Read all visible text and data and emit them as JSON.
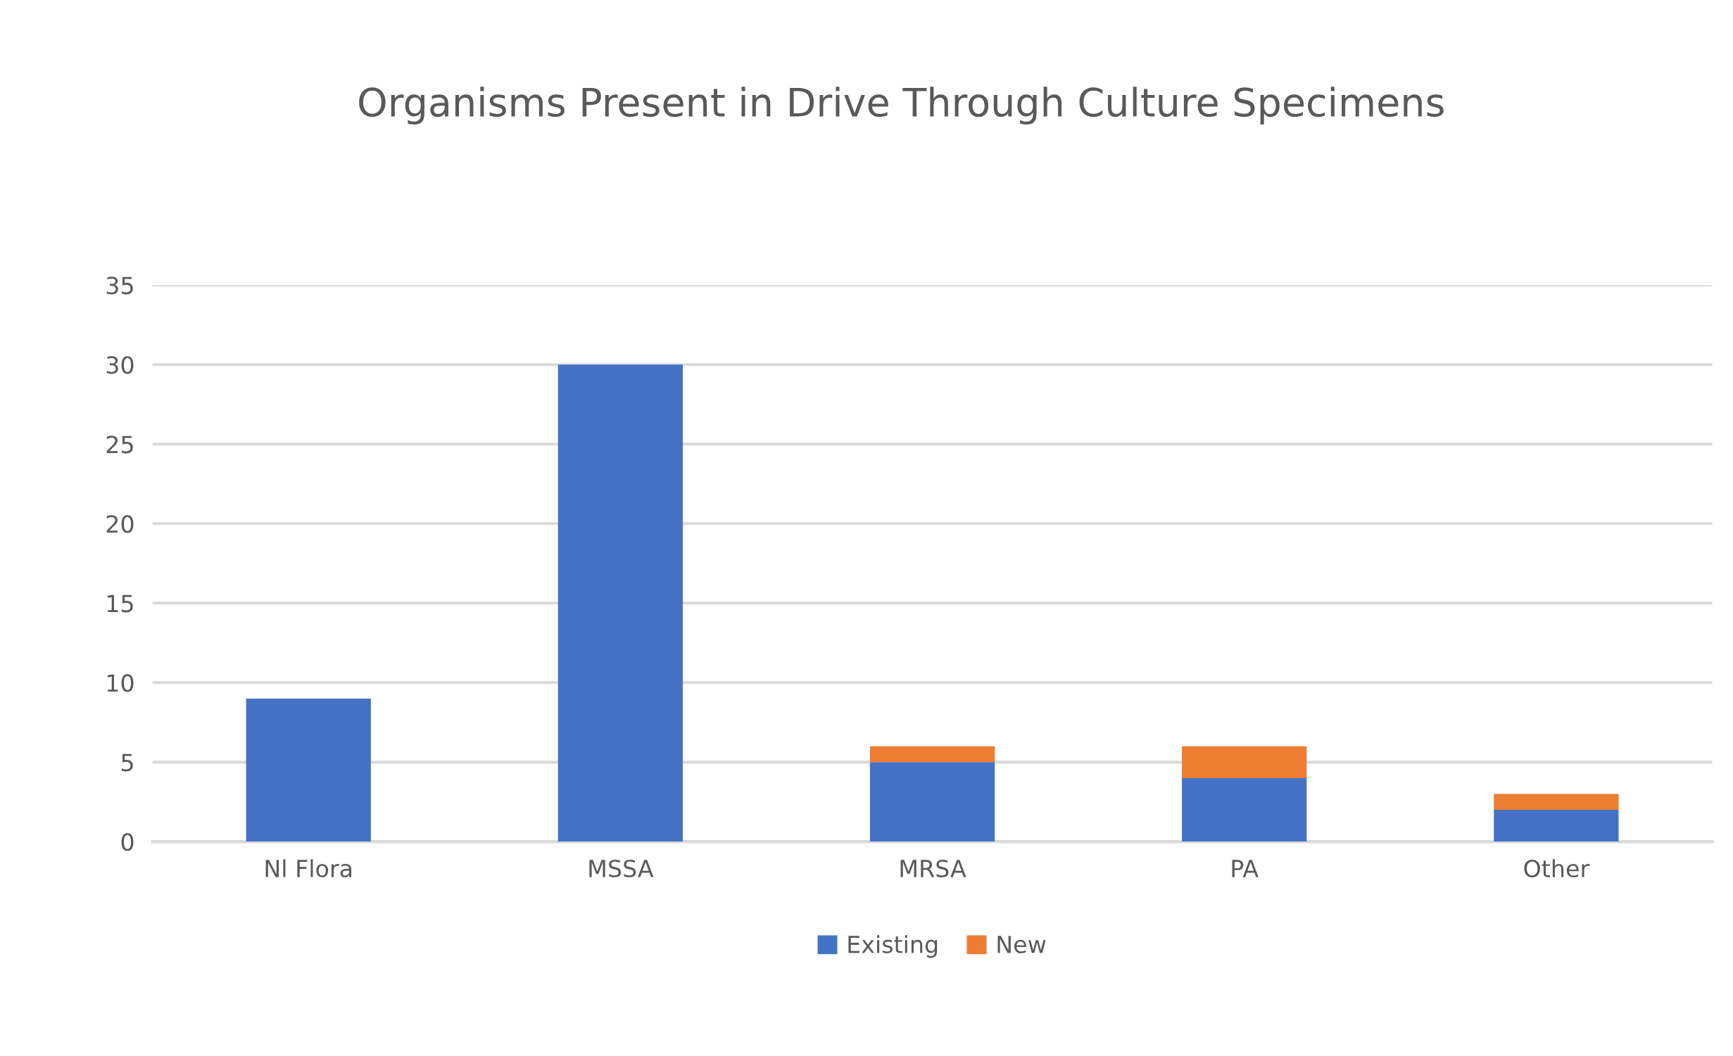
{
  "chart_data": {
    "type": "bar",
    "title": "Organisms Present in Drive Through Culture Specimens",
    "categories": [
      "Nl Flora",
      "MSSA",
      "MRSA",
      "PA",
      "Other"
    ],
    "series": [
      {
        "name": "Existing",
        "color": "#4472c4",
        "values": [
          9,
          30,
          5,
          4,
          2
        ]
      },
      {
        "name": "New",
        "color": "#ed7d31",
        "values": [
          null,
          null,
          1,
          2,
          1
        ]
      }
    ],
    "stacked": true,
    "ylim": [
      0,
      35
    ],
    "yticks": [
      0,
      5,
      10,
      15,
      20,
      25,
      30,
      35
    ],
    "grid": "y",
    "legend": "bottom"
  }
}
